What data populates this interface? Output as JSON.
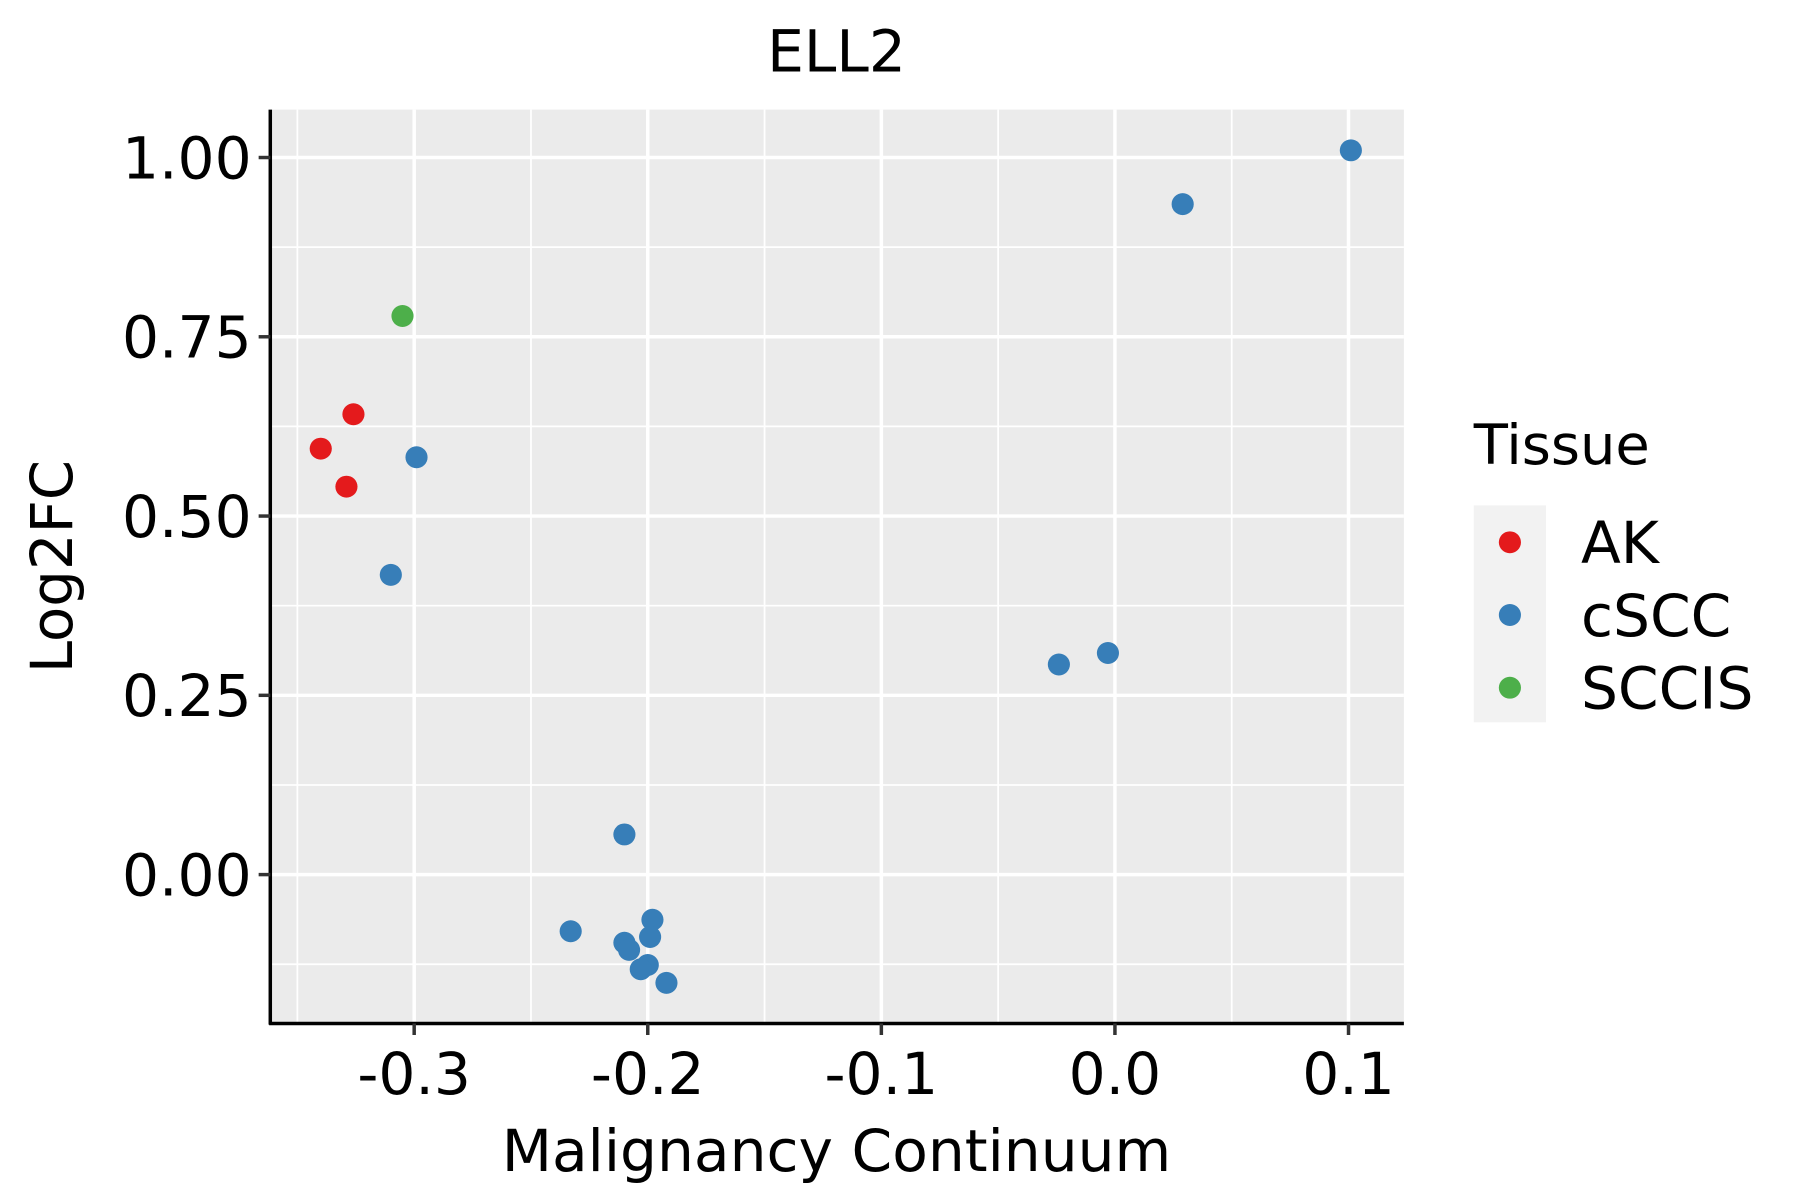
{
  "chart_data": {
    "type": "scatter",
    "title": "ELL2",
    "xlabel": "Malignancy Continuum",
    "ylabel": "Log2FC",
    "xlim": [
      -0.3616,
      0.1237
    ],
    "ylim": [
      -0.2076,
      1.0668
    ],
    "xticks": [
      -0.3,
      -0.2,
      -0.1,
      0.0,
      0.1
    ],
    "xtick_labels": [
      "-0.3",
      "-0.2",
      "-0.1",
      "0.0",
      "0.1"
    ],
    "yticks": [
      0,
      0.25,
      0.5,
      0.75,
      1.0
    ],
    "ytick_labels": [
      "0.00",
      "0.25",
      "0.50",
      "0.75",
      "1.00"
    ],
    "grid": true,
    "legend": {
      "title": "Tissue",
      "placement": "right",
      "entries": [
        {
          "label": "AK",
          "color": "#E41A1C"
        },
        {
          "label": "cSCC",
          "color": "#377EB8"
        },
        {
          "label": "SCCIS",
          "color": "#4DAF4A"
        }
      ]
    },
    "series": [
      {
        "name": "AK",
        "color": "#E41A1C",
        "points": [
          [
            -0.34,
            0.594
          ],
          [
            -0.326,
            0.642
          ],
          [
            -0.329,
            0.541
          ]
        ]
      },
      {
        "name": "SCCIS",
        "color": "#4DAF4A",
        "points": [
          [
            -0.305,
            0.779
          ]
        ]
      },
      {
        "name": "cSCC",
        "color": "#377EB8",
        "points": [
          [
            -0.299,
            0.582
          ],
          [
            -0.31,
            0.418
          ],
          [
            0.029,
            0.935
          ],
          [
            0.101,
            1.01
          ],
          [
            -0.024,
            0.293
          ],
          [
            -0.003,
            0.309
          ],
          [
            -0.21,
            0.056
          ],
          [
            -0.233,
            -0.079
          ],
          [
            -0.198,
            -0.063
          ],
          [
            -0.21,
            -0.095
          ],
          [
            -0.208,
            -0.105
          ],
          [
            -0.199,
            -0.087
          ],
          [
            -0.2,
            -0.126
          ],
          [
            -0.203,
            -0.132
          ],
          [
            -0.192,
            -0.151
          ]
        ]
      }
    ]
  }
}
